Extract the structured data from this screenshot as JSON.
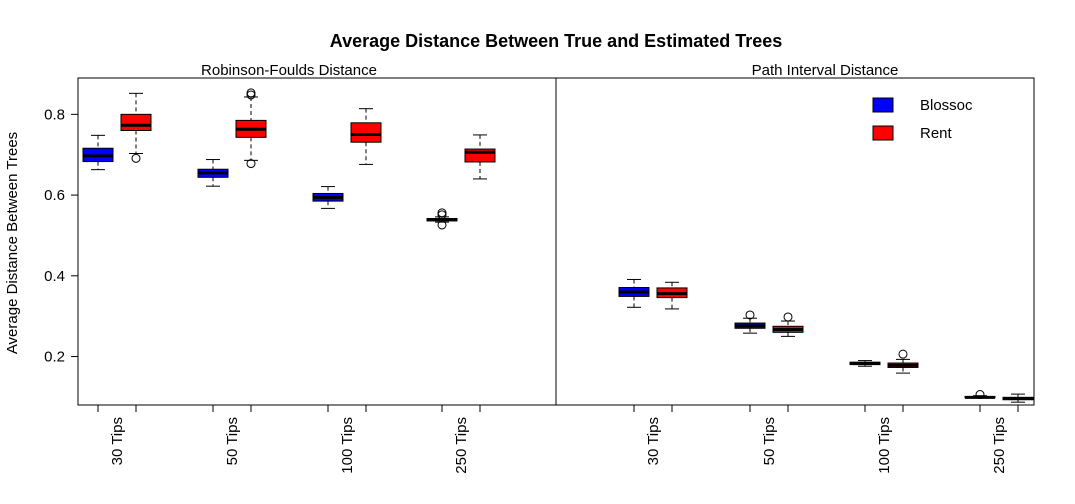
{
  "chart_data": {
    "type": "boxplot",
    "title": "Average Distance Between True and Estimated Trees",
    "ylabel": "Average Distance Between Trees",
    "ylim": [
      0.08,
      0.89
    ],
    "yticks": [
      0.2,
      0.4,
      0.6,
      0.8
    ],
    "categories": [
      "30 Tips",
      "50 Tips",
      "100 Tips",
      "250 Tips"
    ],
    "legend": {
      "position": "top-right",
      "entries": [
        {
          "name": "Blossoc",
          "color": "#0000ff"
        },
        {
          "name": "Rent",
          "color": "#ff0000"
        }
      ]
    },
    "panels": [
      {
        "title": "Robinson-Foulds Distance",
        "groups": [
          {
            "category": "30 Tips",
            "boxes": [
              {
                "series": "Blossoc",
                "min": 0.663,
                "q1": 0.683,
                "median": 0.697,
                "q3": 0.716,
                "max": 0.748,
                "outliers": []
              },
              {
                "series": "Rent",
                "min": 0.703,
                "q1": 0.76,
                "median": 0.773,
                "q3": 0.8,
                "max": 0.852,
                "outliers": [
                  0.691
                ]
              }
            ]
          },
          {
            "category": "50 Tips",
            "boxes": [
              {
                "series": "Blossoc",
                "min": 0.622,
                "q1": 0.644,
                "median": 0.655,
                "q3": 0.664,
                "max": 0.688,
                "outliers": []
              },
              {
                "series": "Rent",
                "min": 0.686,
                "q1": 0.743,
                "median": 0.763,
                "q3": 0.785,
                "max": 0.843,
                "outliers": [
                  0.678,
                  0.848,
                  0.853
                ]
              }
            ]
          },
          {
            "category": "100 Tips",
            "boxes": [
              {
                "series": "Blossoc",
                "min": 0.567,
                "q1": 0.585,
                "median": 0.594,
                "q3": 0.604,
                "max": 0.621,
                "outliers": []
              },
              {
                "series": "Rent",
                "min": 0.676,
                "q1": 0.731,
                "median": 0.75,
                "q3": 0.779,
                "max": 0.814,
                "outliers": []
              }
            ]
          },
          {
            "category": "250 Tips",
            "boxes": [
              {
                "series": "Blossoc",
                "min": 0.533,
                "q1": 0.536,
                "median": 0.539,
                "q3": 0.542,
                "max": 0.546,
                "outliers": [
                  0.526,
                  0.551,
                  0.556
                ]
              },
              {
                "series": "Rent",
                "min": 0.64,
                "q1": 0.682,
                "median": 0.706,
                "q3": 0.714,
                "max": 0.749,
                "outliers": []
              }
            ]
          }
        ]
      },
      {
        "title": "Path Interval Distance",
        "groups": [
          {
            "category": "30 Tips",
            "boxes": [
              {
                "series": "Blossoc",
                "min": 0.322,
                "q1": 0.349,
                "median": 0.36,
                "q3": 0.371,
                "max": 0.391,
                "outliers": []
              },
              {
                "series": "Rent",
                "min": 0.318,
                "q1": 0.346,
                "median": 0.356,
                "q3": 0.37,
                "max": 0.384,
                "outliers": []
              }
            ]
          },
          {
            "category": "50 Tips",
            "boxes": [
              {
                "series": "Blossoc",
                "min": 0.258,
                "q1": 0.27,
                "median": 0.276,
                "q3": 0.283,
                "max": 0.295,
                "outliers": [
                  0.303
                ]
              },
              {
                "series": "Rent",
                "min": 0.25,
                "q1": 0.26,
                "median": 0.267,
                "q3": 0.275,
                "max": 0.288,
                "outliers": [
                  0.298
                ]
              }
            ]
          },
          {
            "category": "100 Tips",
            "boxes": [
              {
                "series": "Blossoc",
                "min": 0.176,
                "q1": 0.18,
                "median": 0.183,
                "q3": 0.186,
                "max": 0.19,
                "outliers": []
              },
              {
                "series": "Rent",
                "min": 0.159,
                "q1": 0.173,
                "median": 0.178,
                "q3": 0.184,
                "max": 0.193,
                "outliers": [
                  0.206
                ]
              }
            ]
          },
          {
            "category": "250 Tips",
            "boxes": [
              {
                "series": "Blossoc",
                "min": 0.097,
                "q1": 0.098,
                "median": 0.099,
                "q3": 0.101,
                "max": 0.103,
                "outliers": [
                  0.106
                ]
              },
              {
                "series": "Rent",
                "min": 0.087,
                "q1": 0.093,
                "median": 0.096,
                "q3": 0.099,
                "max": 0.107,
                "outliers": []
              }
            ]
          }
        ]
      }
    ]
  }
}
